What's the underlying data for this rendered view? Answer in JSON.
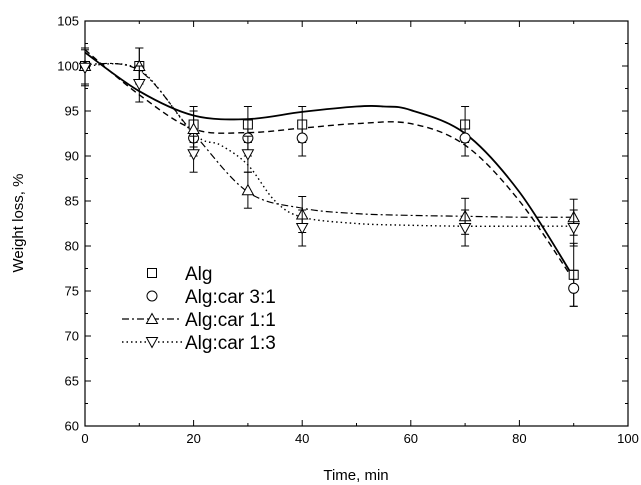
{
  "chart_data": {
    "type": "scatter",
    "xlabel": "Time, min",
    "ylabel": "Weight loss, %",
    "xlim": [
      0,
      100
    ],
    "ylim": [
      60,
      105
    ],
    "xticks": [
      0,
      20,
      40,
      60,
      80,
      100
    ],
    "yticks": [
      60,
      65,
      70,
      75,
      80,
      85,
      90,
      95,
      100,
      105
    ],
    "grid": false,
    "legend_position": "bottom-left",
    "series": [
      {
        "name": "Alg",
        "marker": "square",
        "line_style": "solid",
        "x": [
          0,
          10,
          20,
          30,
          40,
          70,
          90
        ],
        "y": [
          100,
          100,
          93.5,
          93.5,
          93.5,
          93.5,
          76.8
        ],
        "error": [
          2,
          2,
          2,
          2,
          2,
          2,
          3.5
        ],
        "curve_x": [
          0,
          10,
          20,
          30,
          40,
          50,
          55,
          60,
          70,
          80,
          90
        ],
        "curve_y": [
          101.5,
          97.2,
          94.5,
          94.1,
          94.9,
          95.5,
          95.5,
          95.1,
          92.5,
          86,
          76.5
        ]
      },
      {
        "name": "Alg:car 3:1",
        "marker": "circle",
        "line_style": "dashed",
        "x": [
          20,
          30,
          40,
          70,
          90
        ],
        "y": [
          92,
          92,
          92,
          92,
          75.3
        ],
        "error": [
          2,
          2,
          2,
          2,
          2
        ],
        "curve_x": [
          0,
          10,
          20,
          30,
          40,
          50,
          60,
          70,
          80,
          90
        ],
        "curve_y": [
          101.8,
          96.8,
          93,
          92.6,
          93.1,
          93.6,
          93.6,
          91.2,
          85,
          76.2
        ]
      },
      {
        "name": "Alg:car 1:1",
        "marker": "triangle-up",
        "line_style": "dash-dot",
        "x": [
          0,
          10,
          20,
          30,
          40,
          70,
          90
        ],
        "y": [
          100,
          100,
          93,
          86.2,
          83.5,
          83.3,
          83.2
        ],
        "error": [
          2,
          2,
          2,
          2,
          2,
          2,
          2
        ],
        "curve_x": [
          0,
          10,
          20,
          30,
          40,
          50,
          60,
          70,
          80,
          90
        ],
        "curve_y": [
          100.2,
          99.5,
          92.5,
          86,
          84.2,
          83.6,
          83.4,
          83.3,
          83.2,
          83.2
        ]
      },
      {
        "name": "Alg:car 1:3",
        "marker": "triangle-down",
        "line_style": "dotted",
        "x": [
          0,
          10,
          20,
          30,
          40,
          70,
          90
        ],
        "y": [
          99.8,
          98,
          90.2,
          90.2,
          82,
          82,
          82
        ],
        "error": [
          2,
          2,
          2,
          2,
          2,
          2,
          2
        ],
        "curve_x": [
          0,
          10,
          20,
          25,
          30,
          35,
          40,
          50,
          60,
          70,
          80,
          90
        ],
        "curve_y": [
          100,
          99.6,
          92.5,
          91.2,
          89,
          85,
          83.2,
          82.5,
          82.3,
          82.2,
          82.2,
          82.2
        ]
      }
    ]
  }
}
